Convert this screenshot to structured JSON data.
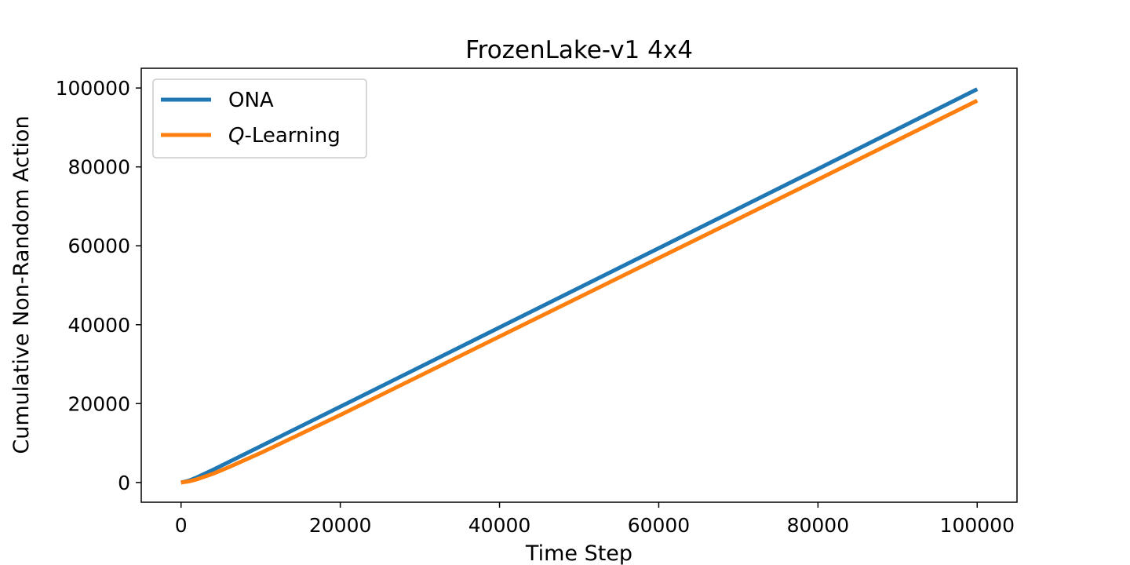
{
  "chart_data": {
    "type": "line",
    "title": "FrozenLake-v1 4x4",
    "xlabel": "Time Step",
    "ylabel": "Cumulative Non-Random Action",
    "xlim": [
      -5000,
      105000
    ],
    "ylim": [
      -5000,
      105000
    ],
    "xticks": [
      0,
      20000,
      40000,
      60000,
      80000,
      100000
    ],
    "yticks": [
      0,
      20000,
      40000,
      60000,
      80000,
      100000
    ],
    "xtick_labels": [
      "0",
      "20000",
      "40000",
      "60000",
      "80000",
      "100000"
    ],
    "ytick_labels": [
      "0",
      "20000",
      "40000",
      "60000",
      "80000",
      "100000"
    ],
    "grid": false,
    "legend_position": "top-left",
    "series": [
      {
        "name": "ONA",
        "color": "#1f77b4",
        "x": [
          0,
          1000,
          2000,
          4000,
          6000,
          10000,
          20000,
          40000,
          60000,
          80000,
          100000
        ],
        "y": [
          0,
          500,
          1300,
          3200,
          5200,
          9200,
          19200,
          39300,
          59400,
          79500,
          99700
        ]
      },
      {
        "name": "Q-Learning",
        "legend_prefix": "Q",
        "legend_suffix": "-Learning",
        "color": "#ff7f0e",
        "x": [
          0,
          1000,
          2000,
          4000,
          6000,
          10000,
          20000,
          40000,
          60000,
          80000,
          100000
        ],
        "y": [
          0,
          300,
          800,
          2200,
          3900,
          7500,
          17100,
          37000,
          56900,
          76800,
          96800
        ]
      }
    ]
  }
}
